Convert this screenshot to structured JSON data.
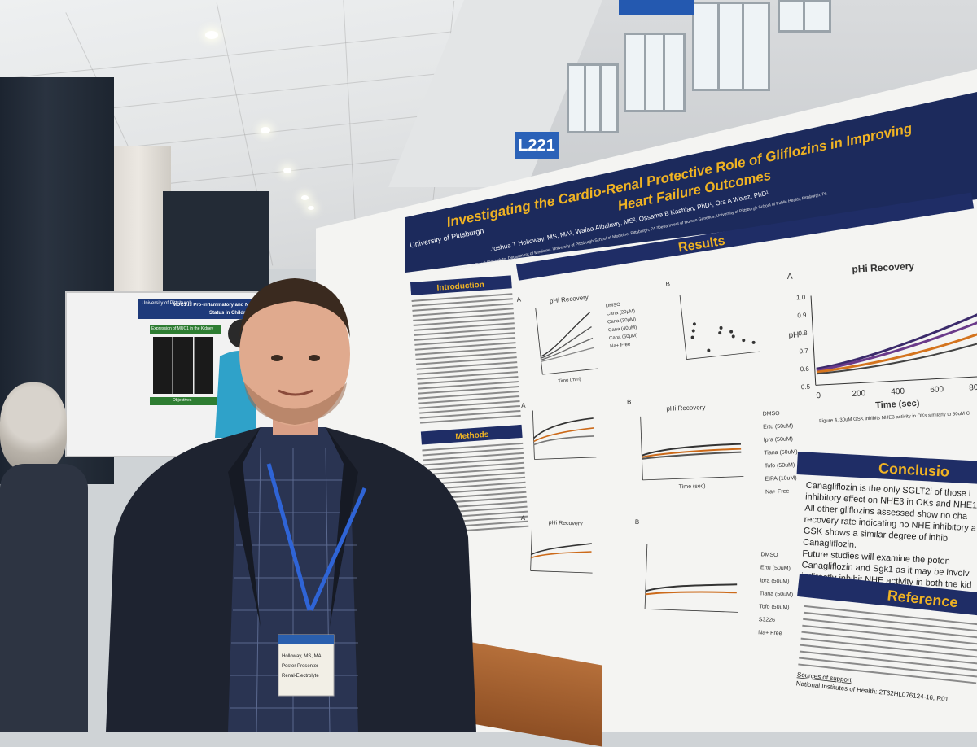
{
  "scene": {
    "room_sign": "L221"
  },
  "poster": {
    "logo_text": "University of Pittsburgh",
    "title_line1": "Investigating the Cardio-Renal Protective Role of Gliflozins in Improving",
    "title_line2": "Heart Failure Outcomes",
    "authors": "Joshua T Holloway, MS, MA¹, Wafaa Albalawy, MS², Ossama B Kashlan, PhD¹, Ora A Weisz, PhD¹",
    "affiliation": "¹Division of Renal-Electrolyte, Department of Medicine, University of Pittsburgh School of Medicine, Pittsburgh, PA  ²Department of Human Genetics, University of Pittsburgh School of Public Health, Pittsburgh, PA",
    "sections": {
      "introduction": "Introduction",
      "methods": "Methods",
      "results": "Results",
      "conclusions": "Conclusio",
      "references": "Reference"
    },
    "chart_titles": {
      "a": "pHi Recovery",
      "b": "pHi Recovery",
      "c": "pHi Recovery",
      "big": "pHi Recovery"
    },
    "panel_labels": [
      "A",
      "B",
      "A",
      "B",
      "A",
      "B",
      "A"
    ],
    "axes": {
      "time_min": "Time (min)",
      "time_sec": "Time (sec)",
      "ph": "pH",
      "initial_slope": "Initial slope (pH/min)"
    },
    "big_chart": {
      "y_ticks": [
        "1.0",
        "0.9",
        "0.8",
        "0.7",
        "0.6",
        "0.5"
      ],
      "x_ticks": [
        "0",
        "200",
        "400",
        "600",
        "800"
      ]
    },
    "legend_1": [
      "DMSO",
      "Cana (20μM)",
      "Cana (30μM)",
      "Cana (40μM)",
      "Cana (50μM)",
      "Na+ Free"
    ],
    "legend_2": [
      "DMSO",
      "Ertu (50uM)",
      "Ipra (50uM)",
      "Tiana (50uM)",
      "Tofo (50uM)",
      "EIPA (10uM)",
      "Na+ Free"
    ],
    "legend_3": [
      "DMSO",
      "Ertu (50uM)",
      "Ipra (50uM)",
      "Tiana (50uM)",
      "Tofo (50uM)",
      "S3226",
      "Na+ Free"
    ],
    "figure4_caption": "Figure 4. 30uM GSK inhibits NHE3 activity in OKs similarly to 50uM C",
    "conclusions_lines": [
      "Canagliflozin is the only SGLT2i of those i",
      "inhibitory effect on NHE3 in OKs and NHE1",
      "All other gliflozins assessed show no cha",
      "recovery rate indicating no NHE inhibitory a",
      "GSK shows a similar degree of inhib",
      "Canagliflozin.",
      "Future studies will examine the poten",
      "Canagliflozin and Sgk1 as it may be involv",
      "indirectly inhibit NHE activity in both the kid"
    ],
    "sources_support": "Sources of support",
    "nih": "National Institutes of Health: 2T32HL076124-16, R01"
  },
  "small_poster": {
    "logo_text": "University of Pittsburgh",
    "title": "MUC1 is Pro-inflammatory and Negatively Corre",
    "subtitle": "Status in Children",
    "section": "Expression of MUC1 in the Kidney",
    "objectives": "Objectives"
  },
  "badge": {
    "name": "Holloway, MS, MA",
    "role": "Poster Presenter",
    "dept": "Renal-Electrolyte"
  },
  "colors": {
    "poster_navy": "#1c2a5c",
    "title_gold": "#f0b323",
    "section_bar": "#1f2d66",
    "shirt": "#2a3452",
    "lanyard": "#2f64d6",
    "blazer": "#1e2330"
  }
}
